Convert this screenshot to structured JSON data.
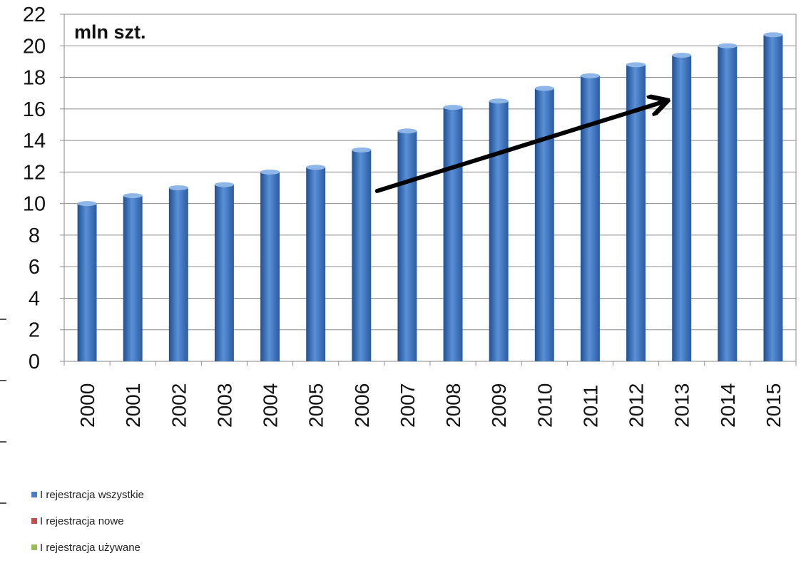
{
  "chart_data": {
    "type": "bar",
    "title": "mln szt.",
    "categories": [
      "2000",
      "2001",
      "2002",
      "2003",
      "2004",
      "2005",
      "2006",
      "2007",
      "2008",
      "2009",
      "2010",
      "2011",
      "2012",
      "2013",
      "2014",
      "2015"
    ],
    "series": [
      {
        "name": "I rejestracja wszystkie",
        "values": [
          10.0,
          10.5,
          11.0,
          11.2,
          12.0,
          12.3,
          13.4,
          14.6,
          16.1,
          16.5,
          17.3,
          18.1,
          18.8,
          19.4,
          20.0,
          20.7
        ],
        "color": "#3e78c6"
      }
    ],
    "legend": [
      {
        "label": "I rejestracja wszystkie",
        "color": "#4a7cc7"
      },
      {
        "label": "I rejestracja nowe",
        "color": "#c0504d"
      },
      {
        "label": "I rejestracja używane",
        "color": "#9bbb59"
      }
    ],
    "ylim": [
      0,
      22
    ],
    "yticks": [
      0,
      2,
      4,
      6,
      8,
      10,
      12,
      14,
      16,
      18,
      20,
      22
    ],
    "xlabel": "",
    "ylabel": "",
    "grid": true,
    "legend_position": "bottom-left",
    "annotation": {
      "type": "arrow",
      "color": "#000000",
      "from": {
        "x": "2006",
        "y": 10.8
      },
      "to": {
        "x": "2013",
        "y": 16.5
      }
    }
  }
}
